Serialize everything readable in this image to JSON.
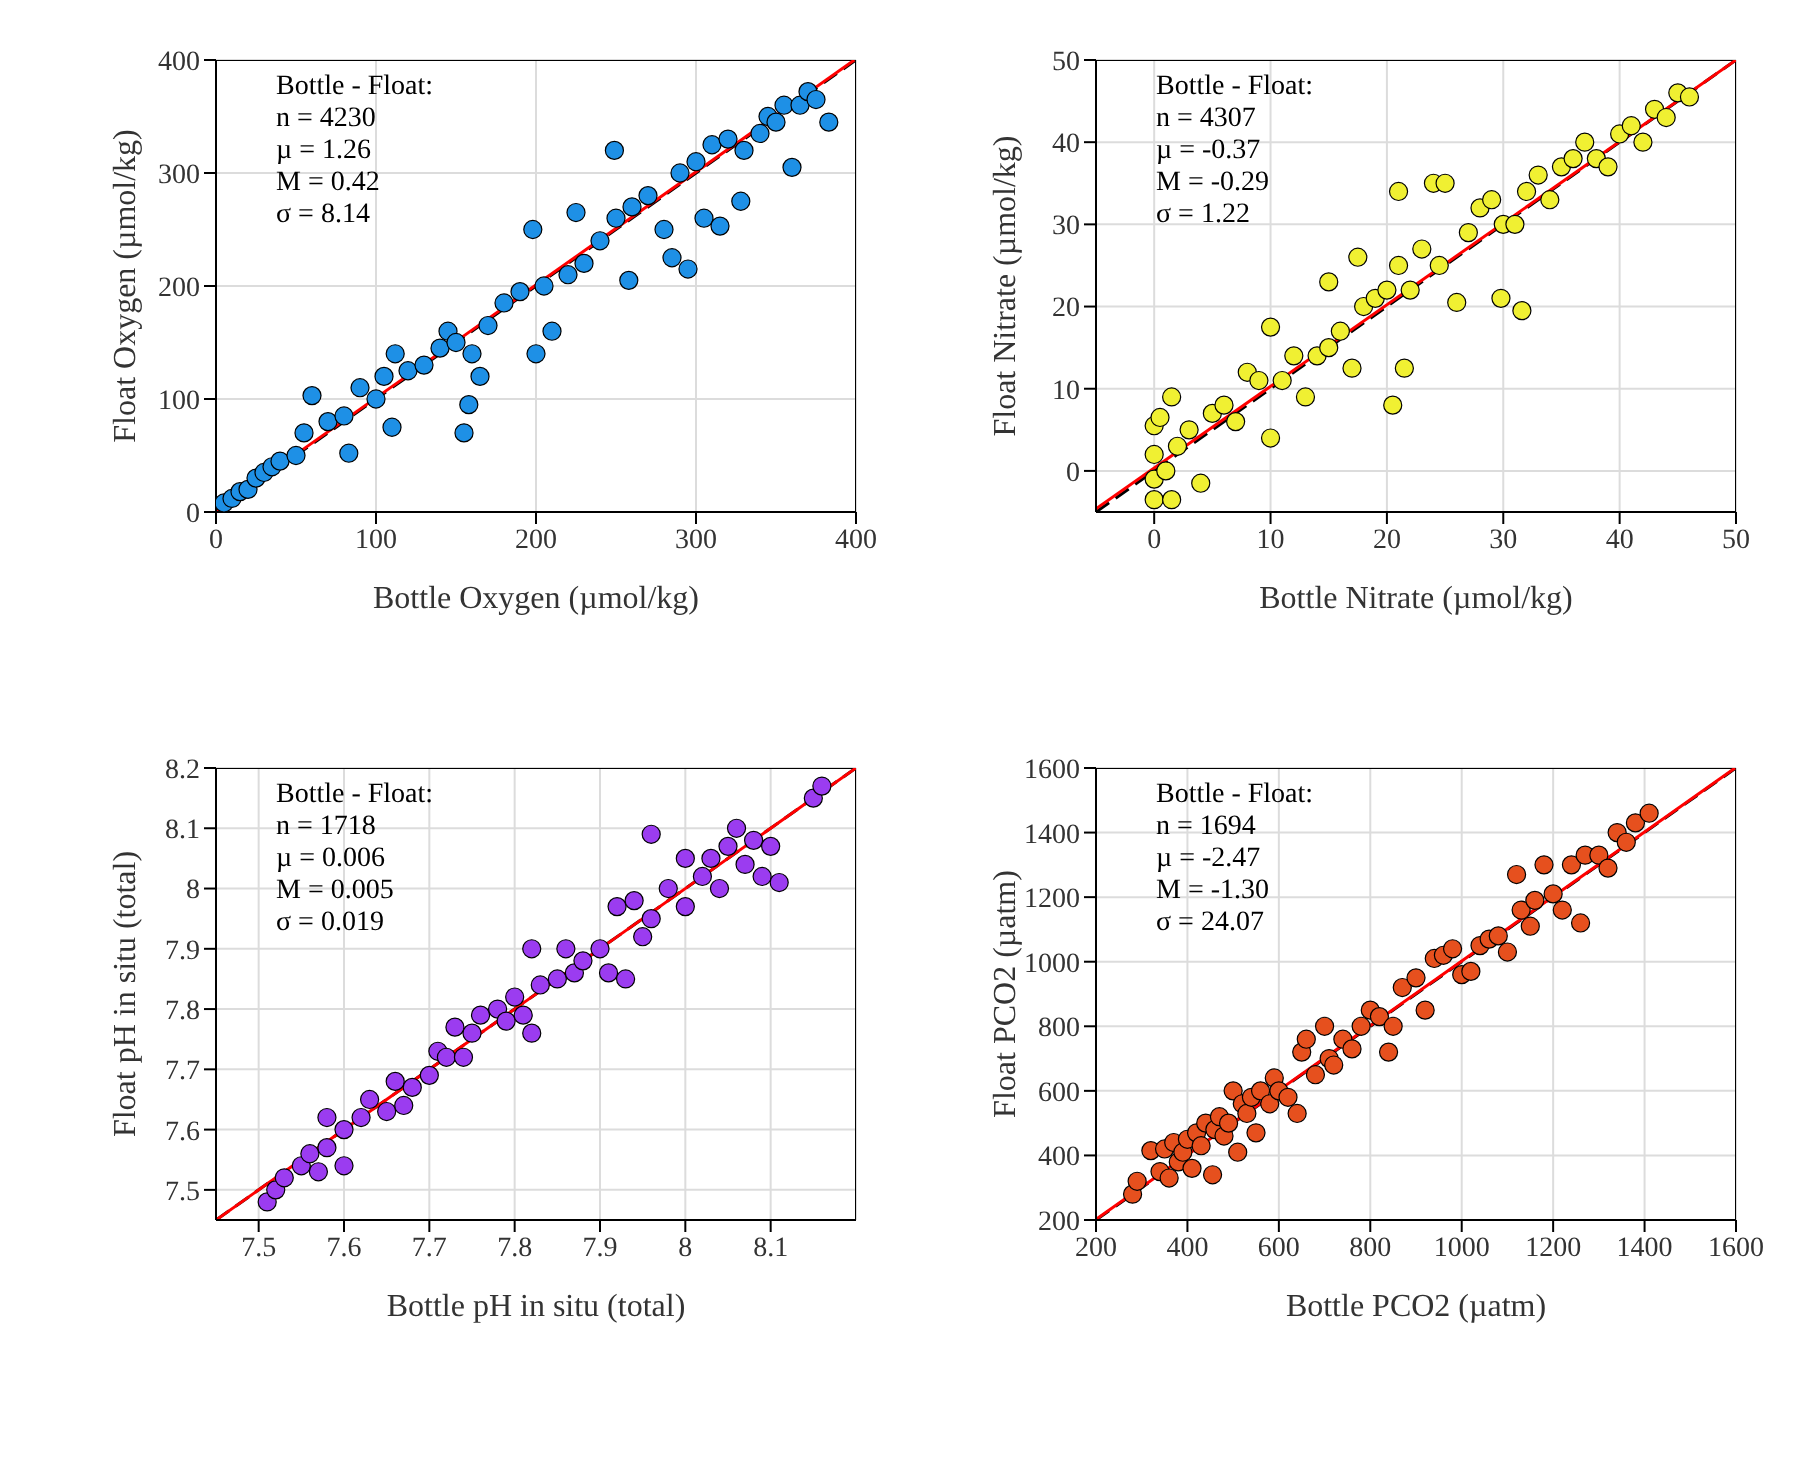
{
  "chart_data": [
    {
      "type": "scatter",
      "xlabel": "Bottle Oxygen (µmol/kg)",
      "ylabel": "Float Oxygen (µmol/kg)",
      "annotations": [
        "Bottle - Float:",
        "n = 4230",
        "µ = 1.26",
        "M = 0.42",
        "σ = 8.14"
      ],
      "xlim": [
        0,
        400
      ],
      "ylim": [
        0,
        400
      ],
      "xticks": [
        0,
        100,
        200,
        300,
        400
      ],
      "yticks": [
        0,
        100,
        200,
        300,
        400
      ],
      "grid": true,
      "marker": "circle",
      "series": [
        {
          "color": "#1e90e6",
          "x": [
            5,
            10,
            15,
            20,
            25,
            30,
            35,
            40,
            50,
            55,
            60,
            70,
            80,
            83,
            90,
            100,
            105,
            110,
            112,
            120,
            130,
            140,
            145,
            150,
            155,
            158,
            160,
            165,
            170,
            180,
            190,
            198,
            200,
            205,
            210,
            220,
            225,
            230,
            240,
            249,
            250,
            258,
            260,
            270,
            280,
            285,
            290,
            295,
            300,
            305,
            310,
            315,
            320,
            328,
            330,
            340,
            345,
            350,
            355,
            360,
            365,
            370,
            375,
            383
          ],
          "values": [
            8,
            12,
            18,
            20,
            30,
            35,
            40,
            45,
            50,
            70,
            103,
            80,
            85,
            52,
            110,
            100,
            120,
            75,
            140,
            125,
            130,
            145,
            160,
            150,
            70,
            95,
            140,
            120,
            165,
            185,
            195,
            250,
            140,
            200,
            160,
            210,
            265,
            220,
            240,
            320,
            260,
            205,
            270,
            280,
            250,
            225,
            300,
            215,
            310,
            260,
            325,
            253,
            330,
            275,
            320,
            335,
            350,
            345,
            360,
            305,
            360,
            372,
            365,
            345
          ]
        },
        {
          "type": "line",
          "color": "#000000",
          "line_style": "dashed",
          "marker": "none",
          "x": [
            0,
            400
          ],
          "values": [
            0,
            400
          ]
        },
        {
          "type": "line",
          "color": "#ff0000",
          "line_style": "solid",
          "marker": "none",
          "x": [
            0,
            399
          ],
          "values": [
            1,
            400
          ]
        }
      ]
    },
    {
      "type": "scatter",
      "xlabel": "Bottle Nitrate (µmol/kg)",
      "ylabel": "Float Nitrate (µmol/kg)",
      "annotations": [
        "Bottle - Float:",
        "n = 4307",
        "µ = -0.37",
        "M = -0.29",
        "σ = 1.22"
      ],
      "xlim": [
        -5,
        50
      ],
      "ylim": [
        -5,
        50
      ],
      "xticks": [
        0,
        10,
        20,
        30,
        40,
        50
      ],
      "yticks": [
        0,
        10,
        20,
        30,
        40,
        50
      ],
      "grid": true,
      "marker": "circle",
      "series": [
        {
          "color": "#f0f032",
          "x": [
            0,
            0,
            0,
            0,
            0.5,
            1,
            1.5,
            1.5,
            2,
            3,
            4,
            5,
            6,
            7,
            8,
            9,
            10,
            10,
            11,
            12,
            13,
            14,
            15,
            15,
            16,
            17,
            17.5,
            18,
            19,
            20,
            20.5,
            21,
            21,
            21.5,
            22,
            23,
            24,
            24.5,
            25,
            26,
            27,
            28,
            29,
            29.8,
            30,
            31,
            31.6,
            32,
            33,
            34,
            35,
            36,
            37,
            38,
            39,
            40,
            41,
            42,
            43,
            44,
            45,
            46
          ],
          "values": [
            -3.5,
            -1,
            2,
            5.5,
            6.5,
            0,
            -3.5,
            9,
            3,
            5,
            -1.5,
            7,
            8,
            6,
            12,
            11,
            4,
            17.5,
            11,
            14,
            9,
            14,
            15,
            23,
            17,
            12.5,
            26,
            20,
            21,
            22,
            8,
            25,
            34,
            12.5,
            22,
            27,
            35,
            25,
            35,
            20.5,
            29,
            32,
            33,
            21,
            30,
            30,
            19.5,
            34,
            36,
            33,
            37,
            38,
            40,
            38,
            37,
            41,
            42,
            40,
            44,
            43,
            46,
            45.5
          ]
        },
        {
          "type": "line",
          "color": "#000000",
          "line_style": "dashed",
          "marker": "none",
          "x": [
            -5,
            50
          ],
          "values": [
            -5,
            50
          ]
        },
        {
          "type": "line",
          "color": "#ff0000",
          "line_style": "solid",
          "marker": "none",
          "x": [
            -5,
            50
          ],
          "values": [
            -4.6,
            50
          ]
        }
      ]
    },
    {
      "type": "scatter",
      "xlabel": "Bottle pH in situ (total)",
      "ylabel": "Float pH in situ (total)",
      "annotations": [
        "Bottle - Float:",
        "n = 1718",
        "µ = 0.006",
        "M = 0.005",
        "σ = 0.019"
      ],
      "xlim": [
        7.45,
        8.2
      ],
      "ylim": [
        7.45,
        8.2
      ],
      "xticks": [
        7.5,
        7.6,
        7.7,
        7.8,
        7.9,
        8,
        8.1
      ],
      "yticks": [
        7.5,
        7.6,
        7.7,
        7.8,
        7.9,
        8,
        8.1,
        8.2
      ],
      "grid": true,
      "marker": "circle",
      "series": [
        {
          "color": "#9b3cf0",
          "x": [
            7.51,
            7.52,
            7.53,
            7.55,
            7.56,
            7.57,
            7.58,
            7.58,
            7.6,
            7.6,
            7.62,
            7.63,
            7.65,
            7.66,
            7.67,
            7.68,
            7.7,
            7.71,
            7.72,
            7.73,
            7.74,
            7.75,
            7.76,
            7.78,
            7.79,
            7.8,
            7.81,
            7.82,
            7.82,
            7.83,
            7.85,
            7.86,
            7.87,
            7.88,
            7.9,
            7.91,
            7.92,
            7.93,
            7.94,
            7.95,
            7.96,
            7.96,
            7.98,
            8,
            8,
            8.02,
            8.03,
            8.04,
            8.05,
            8.06,
            8.07,
            8.08,
            8.09,
            8.1,
            8.11,
            8.15,
            8.16
          ],
          "values": [
            7.48,
            7.5,
            7.52,
            7.54,
            7.56,
            7.53,
            7.62,
            7.57,
            7.54,
            7.6,
            7.62,
            7.65,
            7.63,
            7.68,
            7.64,
            7.67,
            7.69,
            7.73,
            7.72,
            7.77,
            7.72,
            7.76,
            7.79,
            7.8,
            7.78,
            7.82,
            7.79,
            7.76,
            7.9,
            7.84,
            7.85,
            7.9,
            7.86,
            7.88,
            7.9,
            7.86,
            7.97,
            7.85,
            7.98,
            7.92,
            8.09,
            7.95,
            8,
            7.97,
            8.05,
            8.02,
            8.05,
            8,
            8.07,
            8.1,
            8.04,
            8.08,
            8.02,
            8.07,
            8.01,
            8.15,
            8.17
          ]
        },
        {
          "type": "line",
          "color": "#000000",
          "line_style": "dashed",
          "marker": "none",
          "x": [
            7.45,
            8.2
          ],
          "values": [
            7.45,
            8.2
          ]
        },
        {
          "type": "line",
          "color": "#ff0000",
          "line_style": "solid",
          "marker": "none",
          "x": [
            7.45,
            8.2
          ],
          "values": [
            7.45,
            8.2
          ]
        }
      ]
    },
    {
      "type": "scatter",
      "xlabel": "Bottle PCO2 (µatm)",
      "ylabel": "Float PCO2 (µatm)",
      "annotations": [
        "Bottle - Float:",
        "n = 1694",
        "µ = -2.47",
        "M = -1.30",
        "σ = 24.07"
      ],
      "xlim": [
        200,
        1600
      ],
      "ylim": [
        200,
        1600
      ],
      "xticks": [
        200,
        400,
        600,
        800,
        1000,
        1200,
        1400,
        1600
      ],
      "yticks": [
        200,
        400,
        600,
        800,
        1000,
        1200,
        1400,
        1600
      ],
      "grid": true,
      "marker": "circle",
      "series": [
        {
          "color": "#e6501e",
          "x": [
            280,
            290,
            320,
            340,
            350,
            360,
            370,
            380,
            390,
            400,
            410,
            420,
            430,
            440,
            455,
            460,
            470,
            480,
            490,
            500,
            510,
            520,
            530,
            540,
            550,
            560,
            580,
            590,
            600,
            620,
            640,
            650,
            660,
            680,
            700,
            710,
            720,
            740,
            760,
            780,
            800,
            820,
            840,
            850,
            870,
            900,
            920,
            940,
            960,
            980,
            1000,
            1020,
            1040,
            1060,
            1080,
            1100,
            1120,
            1130,
            1150,
            1160,
            1180,
            1200,
            1220,
            1240,
            1260,
            1270,
            1300,
            1320,
            1340,
            1360,
            1380,
            1410
          ],
          "values": [
            280,
            320,
            415,
            350,
            420,
            330,
            440,
            380,
            410,
            450,
            360,
            470,
            430,
            500,
            340,
            480,
            520,
            460,
            500,
            600,
            410,
            560,
            530,
            580,
            470,
            600,
            560,
            640,
            600,
            580,
            530,
            720,
            760,
            650,
            800,
            700,
            680,
            760,
            730,
            800,
            850,
            830,
            720,
            800,
            920,
            950,
            850,
            1010,
            1020,
            1040,
            960,
            970,
            1050,
            1070,
            1080,
            1030,
            1270,
            1160,
            1110,
            1190,
            1300,
            1210,
            1160,
            1300,
            1120,
            1330,
            1330,
            1290,
            1400,
            1370,
            1430,
            1460
          ]
        },
        {
          "type": "line",
          "color": "#000000",
          "line_style": "dashed",
          "marker": "none",
          "x": [
            200,
            1600
          ],
          "values": [
            200,
            1600
          ]
        },
        {
          "type": "line",
          "color": "#ff0000",
          "line_style": "solid",
          "marker": "none",
          "x": [
            200,
            1598
          ],
          "values": [
            202,
            1600
          ]
        }
      ]
    }
  ]
}
